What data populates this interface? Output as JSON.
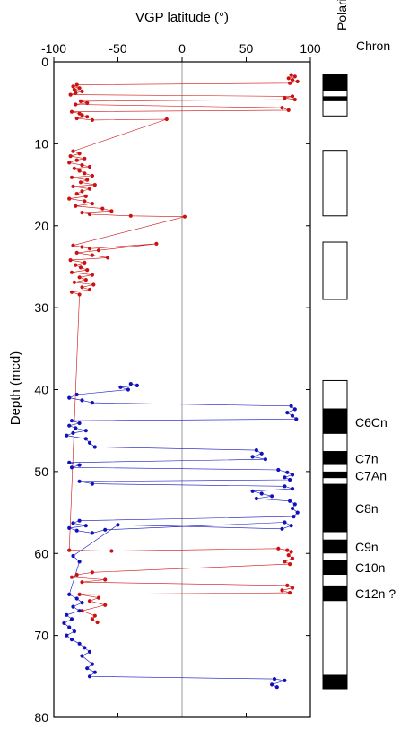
{
  "chart_data": {
    "type": "scatter",
    "title": "",
    "xlabel": "VGP latitude (°)",
    "ylabel": "Depth (mcd)",
    "xlim": [
      -100,
      100
    ],
    "ylim": [
      0,
      80
    ],
    "y_inverted": true,
    "x_axis_position": "top",
    "xticks": [
      "-100",
      "-50",
      "0",
      "50",
      "100"
    ],
    "yticks": [
      "0",
      "10",
      "20",
      "30",
      "40",
      "50",
      "60",
      "70",
      "80"
    ],
    "zero_line": true,
    "colors": {
      "red": "#cc1111",
      "blue": "#1111bb"
    },
    "series": [
      {
        "color": "red",
        "points": [
          [
            85,
            1.6
          ],
          [
            88,
            1.8
          ],
          [
            83,
            2.0
          ],
          [
            86,
            2.2
          ],
          [
            90,
            2.4
          ],
          [
            84,
            2.6
          ],
          [
            -82,
            2.8
          ],
          [
            -85,
            3.0
          ],
          [
            -80,
            3.2
          ],
          [
            -84,
            3.4
          ],
          [
            -78,
            3.6
          ],
          [
            -83,
            3.8
          ],
          [
            -87,
            4.0
          ],
          [
            86,
            4.2
          ],
          [
            80,
            4.4
          ],
          [
            88,
            4.6
          ],
          [
            -79,
            4.8
          ],
          [
            -74,
            5.0
          ],
          [
            -83,
            5.2
          ],
          [
            78,
            5.6
          ],
          [
            83,
            5.9
          ],
          [
            -86,
            6.1
          ],
          [
            -80,
            6.3
          ],
          [
            -78,
            6.5
          ],
          [
            -74,
            6.7
          ],
          [
            -82,
            6.9
          ],
          [
            -70,
            7.1
          ],
          [
            -12,
            7.0
          ],
          [
            -85,
            10.9
          ],
          [
            -80,
            11.2
          ],
          [
            -87,
            11.5
          ],
          [
            -76,
            11.8
          ],
          [
            -82,
            12.0
          ],
          [
            -88,
            12.3
          ],
          [
            -78,
            12.6
          ],
          [
            -72,
            12.8
          ],
          [
            -84,
            13.0
          ],
          [
            -80,
            13.3
          ],
          [
            -76,
            13.6
          ],
          [
            -70,
            13.9
          ],
          [
            -86,
            14.1
          ],
          [
            -74,
            14.4
          ],
          [
            -79,
            14.7
          ],
          [
            -68,
            15.0
          ],
          [
            -85,
            15.2
          ],
          [
            -72,
            15.5
          ],
          [
            -78,
            15.8
          ],
          [
            -82,
            16.1
          ],
          [
            -75,
            16.4
          ],
          [
            -88,
            16.7
          ],
          [
            -76,
            17.0
          ],
          [
            -70,
            17.3
          ],
          [
            -83,
            17.6
          ],
          [
            -62,
            17.9
          ],
          [
            -55,
            18.2
          ],
          [
            -78,
            18.4
          ],
          [
            -72,
            18.6
          ],
          [
            -40,
            18.8
          ],
          [
            2,
            18.9
          ],
          [
            -85,
            22.4
          ],
          [
            -78,
            22.6
          ],
          [
            -72,
            22.8
          ],
          [
            -20,
            22.2
          ],
          [
            -65,
            23.0
          ],
          [
            -82,
            23.3
          ],
          [
            -70,
            23.6
          ],
          [
            -58,
            23.9
          ],
          [
            -87,
            24.2
          ],
          [
            -76,
            24.5
          ],
          [
            -83,
            24.8
          ],
          [
            -79,
            25.1
          ],
          [
            -74,
            25.4
          ],
          [
            -86,
            25.7
          ],
          [
            -70,
            26.0
          ],
          [
            -80,
            26.3
          ],
          [
            -75,
            26.6
          ],
          [
            -84,
            26.9
          ],
          [
            -69,
            27.2
          ],
          [
            -78,
            27.5
          ],
          [
            -72,
            27.8
          ],
          [
            -86,
            28.1
          ],
          [
            -80,
            28.4
          ],
          [
            -88,
            59.6
          ],
          [
            -55,
            59.7
          ],
          [
            75,
            59.4
          ],
          [
            82,
            59.6
          ],
          [
            85,
            59.8
          ],
          [
            83,
            60.2
          ],
          [
            86,
            60.6
          ],
          [
            80,
            61.0
          ],
          [
            84,
            61.3
          ],
          [
            -70,
            62.3
          ],
          [
            -82,
            62.6
          ],
          [
            -86,
            62.9
          ],
          [
            -60,
            63.2
          ],
          [
            -78,
            63.5
          ],
          [
            82,
            63.9
          ],
          [
            86,
            64.2
          ],
          [
            78,
            64.5
          ],
          [
            84,
            64.8
          ],
          [
            -80,
            65.0
          ],
          [
            -65,
            65.4
          ],
          [
            -72,
            65.8
          ],
          [
            -60,
            66.3
          ],
          [
            -78,
            67.0
          ],
          [
            -68,
            67.6
          ],
          [
            -70,
            68.0
          ],
          [
            -66,
            68.4
          ]
        ]
      },
      {
        "color": "blue",
        "points": [
          [
            -40,
            39.3
          ],
          [
            -35,
            39.5
          ],
          [
            -48,
            39.7
          ],
          [
            -42,
            40.0
          ],
          [
            -82,
            40.6
          ],
          [
            -88,
            41.0
          ],
          [
            -78,
            41.3
          ],
          [
            -70,
            41.6
          ],
          [
            85,
            42.0
          ],
          [
            88,
            42.4
          ],
          [
            82,
            42.8
          ],
          [
            86,
            43.2
          ],
          [
            89,
            43.6
          ],
          [
            -86,
            43.8
          ],
          [
            -80,
            44.1
          ],
          [
            -88,
            44.4
          ],
          [
            -83,
            44.7
          ],
          [
            -75,
            45.0
          ],
          [
            -85,
            45.3
          ],
          [
            -90,
            45.6
          ],
          [
            -75,
            46.0
          ],
          [
            -72,
            46.5
          ],
          [
            -68,
            47.0
          ],
          [
            58,
            47.4
          ],
          [
            62,
            47.8
          ],
          [
            55,
            48.2
          ],
          [
            65,
            48.5
          ],
          [
            -88,
            48.9
          ],
          [
            -80,
            49.2
          ],
          [
            -86,
            49.5
          ],
          [
            75,
            49.8
          ],
          [
            82,
            50.1
          ],
          [
            86,
            50.4
          ],
          [
            80,
            50.7
          ],
          [
            84,
            51.0
          ],
          [
            -80,
            51.2
          ],
          [
            -70,
            51.5
          ],
          [
            80,
            51.8
          ],
          [
            86,
            52.1
          ],
          [
            55,
            52.4
          ],
          [
            62,
            52.7
          ],
          [
            70,
            53.0
          ],
          [
            58,
            53.3
          ],
          [
            84,
            53.6
          ],
          [
            88,
            54.0
          ],
          [
            86,
            54.5
          ],
          [
            90,
            55.0
          ],
          [
            87,
            55.5
          ],
          [
            -80,
            56.0
          ],
          [
            -85,
            56.3
          ],
          [
            -75,
            56.6
          ],
          [
            -88,
            56.9
          ],
          [
            -82,
            57.2
          ],
          [
            -70,
            57.5
          ],
          [
            -60,
            57.1
          ],
          [
            80,
            56.2
          ],
          [
            85,
            56.6
          ],
          [
            78,
            57.0
          ],
          [
            -50,
            56.5
          ],
          [
            -85,
            60.3
          ],
          [
            -80,
            61.0
          ],
          [
            -88,
            65.0
          ],
          [
            -82,
            65.5
          ],
          [
            -78,
            66.0
          ],
          [
            -85,
            66.5
          ],
          [
            -80,
            67.0
          ],
          [
            -90,
            67.5
          ],
          [
            -86,
            68.0
          ],
          [
            -92,
            68.5
          ],
          [
            -88,
            69.0
          ],
          [
            -84,
            69.5
          ],
          [
            -90,
            70.0
          ],
          [
            -86,
            70.5
          ],
          [
            -80,
            71.0
          ],
          [
            -76,
            71.5
          ],
          [
            -72,
            72.0
          ],
          [
            -78,
            72.5
          ],
          [
            -70,
            73.5
          ],
          [
            -74,
            74.0
          ],
          [
            -68,
            74.5
          ],
          [
            -72,
            75.0
          ],
          [
            72,
            75.3
          ],
          [
            80,
            75.5
          ],
          [
            70,
            76.0
          ],
          [
            74,
            76.3
          ]
        ]
      }
    ],
    "polarity_label": "Polarity",
    "chron_label": "Chron",
    "polarity_range": [
      1.5,
      76.5
    ],
    "polarity_boxes": [
      [
        1.5,
        6.6
      ],
      [
        10.8,
        18.8
      ],
      [
        22.0,
        29.0
      ],
      [
        38.9,
        76.5
      ]
    ],
    "normal_intervals": [
      [
        1.5,
        3.6
      ],
      [
        4.2,
        4.8
      ],
      [
        42.3,
        45.4
      ],
      [
        47.5,
        49.2
      ],
      [
        50.0,
        50.8
      ],
      [
        51.5,
        57.4
      ],
      [
        58.3,
        60.0
      ],
      [
        60.8,
        62.6
      ],
      [
        63.9,
        65.8
      ],
      [
        74.8,
        76.5
      ]
    ],
    "chrons": [
      {
        "label": "C6Cn",
        "depth": 44.0
      },
      {
        "label": "C7n",
        "depth": 48.4
      },
      {
        "label": "C7An",
        "depth": 50.5
      },
      {
        "label": "C8n",
        "depth": 54.5
      },
      {
        "label": "C9n",
        "depth": 59.2
      },
      {
        "label": "C10n",
        "depth": 61.7
      },
      {
        "label": "C12n ?",
        "depth": 64.9
      }
    ]
  }
}
